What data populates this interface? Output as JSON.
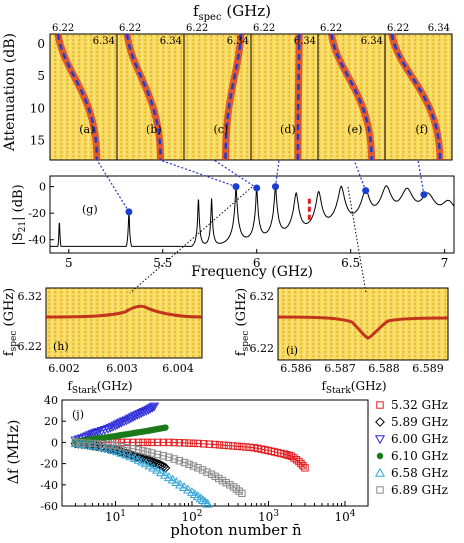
{
  "figure": {
    "top": {
      "xlabel": "f",
      "xlabel_sub": "spec",
      "xlabel_unit": " (GHz)",
      "ylabel": "Attenuation (dB)",
      "panel_tick_left": "6.22",
      "panel_tick_right": "6.34",
      "yticks": [
        "0",
        "5",
        "10",
        "15"
      ],
      "panels": [
        "(a)",
        "(b)",
        "(c)",
        "(d)",
        "(e)",
        "(f)"
      ]
    },
    "middle": {
      "label": "(g)",
      "ylabel": "|S",
      "ylabel_sub": "21",
      "ylabel_unit": "| (dB)",
      "xlabel": "Frequency (GHz)"
    },
    "stark_left": {
      "label": "(h)",
      "ylabel": "f",
      "ylabel_sub": "spec",
      "ylabel_unit": " (GHz)",
      "xlabel": "f",
      "xlabel_sub": "Stark",
      "xlabel_unit": "(GHz)",
      "yticks": [
        "6.32",
        "6.22"
      ],
      "xticks": [
        "6.002",
        "6.003",
        "6.004"
      ]
    },
    "stark_right": {
      "label": "(i)",
      "ylabel": "f",
      "ylabel_sub": "spec",
      "ylabel_unit": " (GHz)",
      "xlabel": "f",
      "xlabel_sub": "Stark",
      "xlabel_unit": "(GHz)",
      "yticks": [
        "6.32",
        "6.22"
      ],
      "xticks": [
        "6.586",
        "6.587",
        "6.588",
        "6.589"
      ]
    },
    "bottom": {
      "label": "(j)",
      "ylabel": "Δf  (MHz)",
      "xlabel": "photon number n̄"
    }
  },
  "chart_data": [
    {
      "type": "line",
      "panel": "g",
      "xlabel": "Frequency (GHz)",
      "ylabel": "|S21| (dB)",
      "xlim": [
        4.9,
        7.05
      ],
      "ylim": [
        -50,
        8
      ],
      "xticks": [
        5,
        5.5,
        6,
        6.5,
        7
      ],
      "yticks": [
        0,
        -20,
        -40
      ],
      "xtick_labels": [
        "5",
        "5.5",
        "6",
        "6.5",
        "7"
      ],
      "ytick_labels": [
        "0",
        "-20",
        "-40"
      ],
      "baseline": -45,
      "resonances": [
        {
          "f": 4.95,
          "peak": -27,
          "w": 0.002
        },
        {
          "f": 5.32,
          "peak": -19,
          "w": 0.002
        },
        {
          "f": 5.69,
          "peak": -9,
          "w": 0.002
        },
        {
          "f": 5.76,
          "peak": -9,
          "w": 0.002
        },
        {
          "f": 5.89,
          "peak": 0,
          "w": 0.003
        },
        {
          "f": 6.0,
          "peak": -1,
          "w": 0.003
        },
        {
          "f": 6.1,
          "peak": 0,
          "w": 0.004
        },
        {
          "f": 6.21,
          "peak": -5,
          "w": 0.008
        },
        {
          "f": 6.33,
          "peak": -4,
          "w": 0.01
        },
        {
          "f": 6.45,
          "peak": 0,
          "w": 0.012
        },
        {
          "f": 6.58,
          "peak": -3,
          "w": 0.016
        },
        {
          "f": 6.69,
          "peak": 0,
          "w": 0.02
        },
        {
          "f": 6.8,
          "peak": -2,
          "w": 0.025
        },
        {
          "f": 6.91,
          "peak": -6,
          "w": 0.03
        },
        {
          "f": 7.02,
          "peak": -12,
          "w": 0.035
        }
      ],
      "highlighted": [
        5.32,
        5.89,
        6.0,
        6.1,
        6.58,
        6.89
      ],
      "marker_line": {
        "f": 6.28,
        "y": [
          -25,
          -7
        ],
        "color": "#e41a1c"
      }
    },
    {
      "type": "scatter",
      "panel": "j",
      "xlabel": "photon number n̄",
      "ylabel": "Δf (MHz)",
      "xscale": "log",
      "xlim": [
        2,
        20000
      ],
      "ylim": [
        -60,
        40
      ],
      "yticks": [
        40,
        20,
        0,
        -20,
        -40,
        -60
      ],
      "xticks": [
        10,
        100,
        1000,
        10000
      ],
      "xtick_labels": [
        "10",
        "10",
        "10",
        "10"
      ],
      "xtick_exps": [
        "1",
        "2",
        "3",
        "4"
      ],
      "series": [
        {
          "name": "5.32 GHz",
          "marker": "square-open",
          "color": "#e41a1c",
          "x": [
            3,
            5,
            8,
            12,
            20,
            30,
            50,
            80,
            120,
            200,
            300,
            450,
            650,
            900,
            1200,
            1600,
            2000,
            2500,
            3000
          ],
          "y": [
            0,
            0,
            0,
            0,
            0,
            0,
            0,
            -0.5,
            -1,
            -2,
            -3,
            -4,
            -5,
            -7,
            -9,
            -11,
            -13,
            -18,
            -24
          ]
        },
        {
          "name": "5.89 GHz",
          "marker": "diamond-open",
          "color": "#000000",
          "x": [
            3,
            4,
            5,
            6,
            8,
            10,
            12,
            15,
            18,
            22,
            27,
            32,
            38,
            45
          ],
          "y": [
            -1,
            -2,
            -3,
            -4,
            -6,
            -7,
            -9,
            -11,
            -13,
            -15,
            -17,
            -19,
            -21,
            -24
          ]
        },
        {
          "name": "6.00 GHz",
          "marker": "triangle-down-open",
          "color": "#2b2bd9",
          "x": [
            3,
            4,
            5,
            6,
            8,
            10,
            12,
            15,
            18,
            22,
            27,
            32
          ],
          "y": [
            2,
            5,
            8,
            10,
            13,
            16,
            19,
            22,
            25,
            28,
            31,
            34
          ]
        },
        {
          "name": "6.10 GHz",
          "marker": "circle-filled",
          "color": "#1a7a1a",
          "x": [
            3,
            4,
            5,
            6,
            8,
            10,
            12,
            15,
            18,
            22,
            27,
            32,
            38,
            45
          ],
          "y": [
            1,
            2,
            3,
            4,
            5,
            6,
            7,
            8,
            9,
            10,
            11,
            12,
            13,
            14
          ]
        },
        {
          "name": "6.58 GHz",
          "marker": "triangle-up-open",
          "color": "#36a6d6",
          "x": [
            3,
            5,
            8,
            12,
            18,
            25,
            35,
            50,
            70,
            100,
            130,
            160
          ],
          "y": [
            -1,
            -3,
            -6,
            -10,
            -15,
            -20,
            -26,
            -33,
            -40,
            -47,
            -53,
            -58
          ]
        },
        {
          "name": "6.89 GHz",
          "marker": "square-open",
          "color": "#888888",
          "x": [
            3,
            5,
            8,
            12,
            20,
            30,
            50,
            80,
            120,
            180,
            250,
            350,
            450
          ],
          "y": [
            0,
            -1,
            -2,
            -4,
            -7,
            -10,
            -14,
            -19,
            -24,
            -30,
            -36,
            -42,
            -48
          ]
        }
      ]
    }
  ]
}
